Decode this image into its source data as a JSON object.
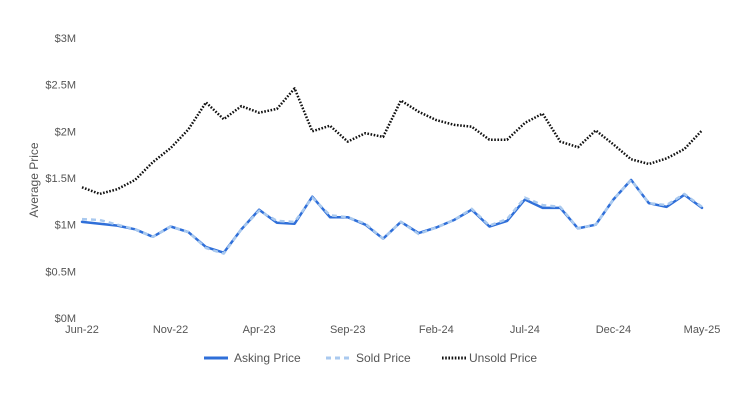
{
  "chart_data": {
    "type": "line",
    "ylabel": "Average Price",
    "ylim": [
      0,
      3000000
    ],
    "y_ticks": [
      {
        "value": 0,
        "label": "$0M"
      },
      {
        "value": 500000,
        "label": "$0.5M"
      },
      {
        "value": 1000000,
        "label": "$1M"
      },
      {
        "value": 1500000,
        "label": "$1.5M"
      },
      {
        "value": 2000000,
        "label": "$2M"
      },
      {
        "value": 2500000,
        "label": "$2.5M"
      },
      {
        "value": 3000000,
        "label": "$3M"
      }
    ],
    "x": [
      "Jun-22",
      "Jul-22",
      "Aug-22",
      "Sep-22",
      "Oct-22",
      "Nov-22",
      "Dec-22",
      "Jan-23",
      "Feb-23",
      "Mar-23",
      "Apr-23",
      "May-23",
      "Jun-23",
      "Jul-23",
      "Aug-23",
      "Sep-23",
      "Oct-23",
      "Nov-23",
      "Dec-23",
      "Jan-24",
      "Feb-24",
      "Mar-24",
      "Apr-24",
      "May-24",
      "Jun-24",
      "Jul-24",
      "Aug-24",
      "Sep-24",
      "Oct-24",
      "Nov-24",
      "Dec-24",
      "Jan-25",
      "Feb-25",
      "Mar-25",
      "Apr-25",
      "May-25"
    ],
    "x_tick_labels": [
      "Jun-22",
      "Nov-22",
      "Apr-23",
      "Sep-23",
      "Feb-24",
      "Jul-24",
      "Dec-24",
      "May-25"
    ],
    "grid": false,
    "legend_position": "bottom",
    "series": [
      {
        "name": "Asking Price",
        "color": "#2f6fd9",
        "style": "solid",
        "values": [
          1030000,
          1010000,
          990000,
          950000,
          870000,
          980000,
          920000,
          760000,
          700000,
          950000,
          1160000,
          1020000,
          1010000,
          1300000,
          1080000,
          1080000,
          1000000,
          850000,
          1030000,
          910000,
          970000,
          1050000,
          1160000,
          980000,
          1040000,
          1270000,
          1180000,
          1180000,
          960000,
          1000000,
          1270000,
          1480000,
          1230000,
          1190000,
          1320000,
          1180000
        ]
      },
      {
        "name": "Sold Price",
        "color": "#a9c9ef",
        "style": "dashed",
        "values": [
          1060000,
          1050000,
          1000000,
          950000,
          870000,
          980000,
          920000,
          750000,
          690000,
          950000,
          1150000,
          1040000,
          1030000,
          1290000,
          1100000,
          1080000,
          1010000,
          850000,
          1030000,
          900000,
          970000,
          1050000,
          1170000,
          990000,
          1060000,
          1290000,
          1210000,
          1190000,
          960000,
          1000000,
          1270000,
          1480000,
          1230000,
          1210000,
          1330000,
          1190000
        ]
      },
      {
        "name": "Unsold Price",
        "color": "#111111",
        "style": "dotted",
        "values": [
          1400000,
          1330000,
          1380000,
          1480000,
          1670000,
          1820000,
          2020000,
          2310000,
          2130000,
          2270000,
          2200000,
          2240000,
          2460000,
          2000000,
          2060000,
          1890000,
          1980000,
          1940000,
          2330000,
          2210000,
          2120000,
          2070000,
          2050000,
          1910000,
          1910000,
          2090000,
          2190000,
          1890000,
          1830000,
          2010000,
          1860000,
          1700000,
          1650000,
          1710000,
          1810000,
          2010000
        ]
      }
    ]
  }
}
